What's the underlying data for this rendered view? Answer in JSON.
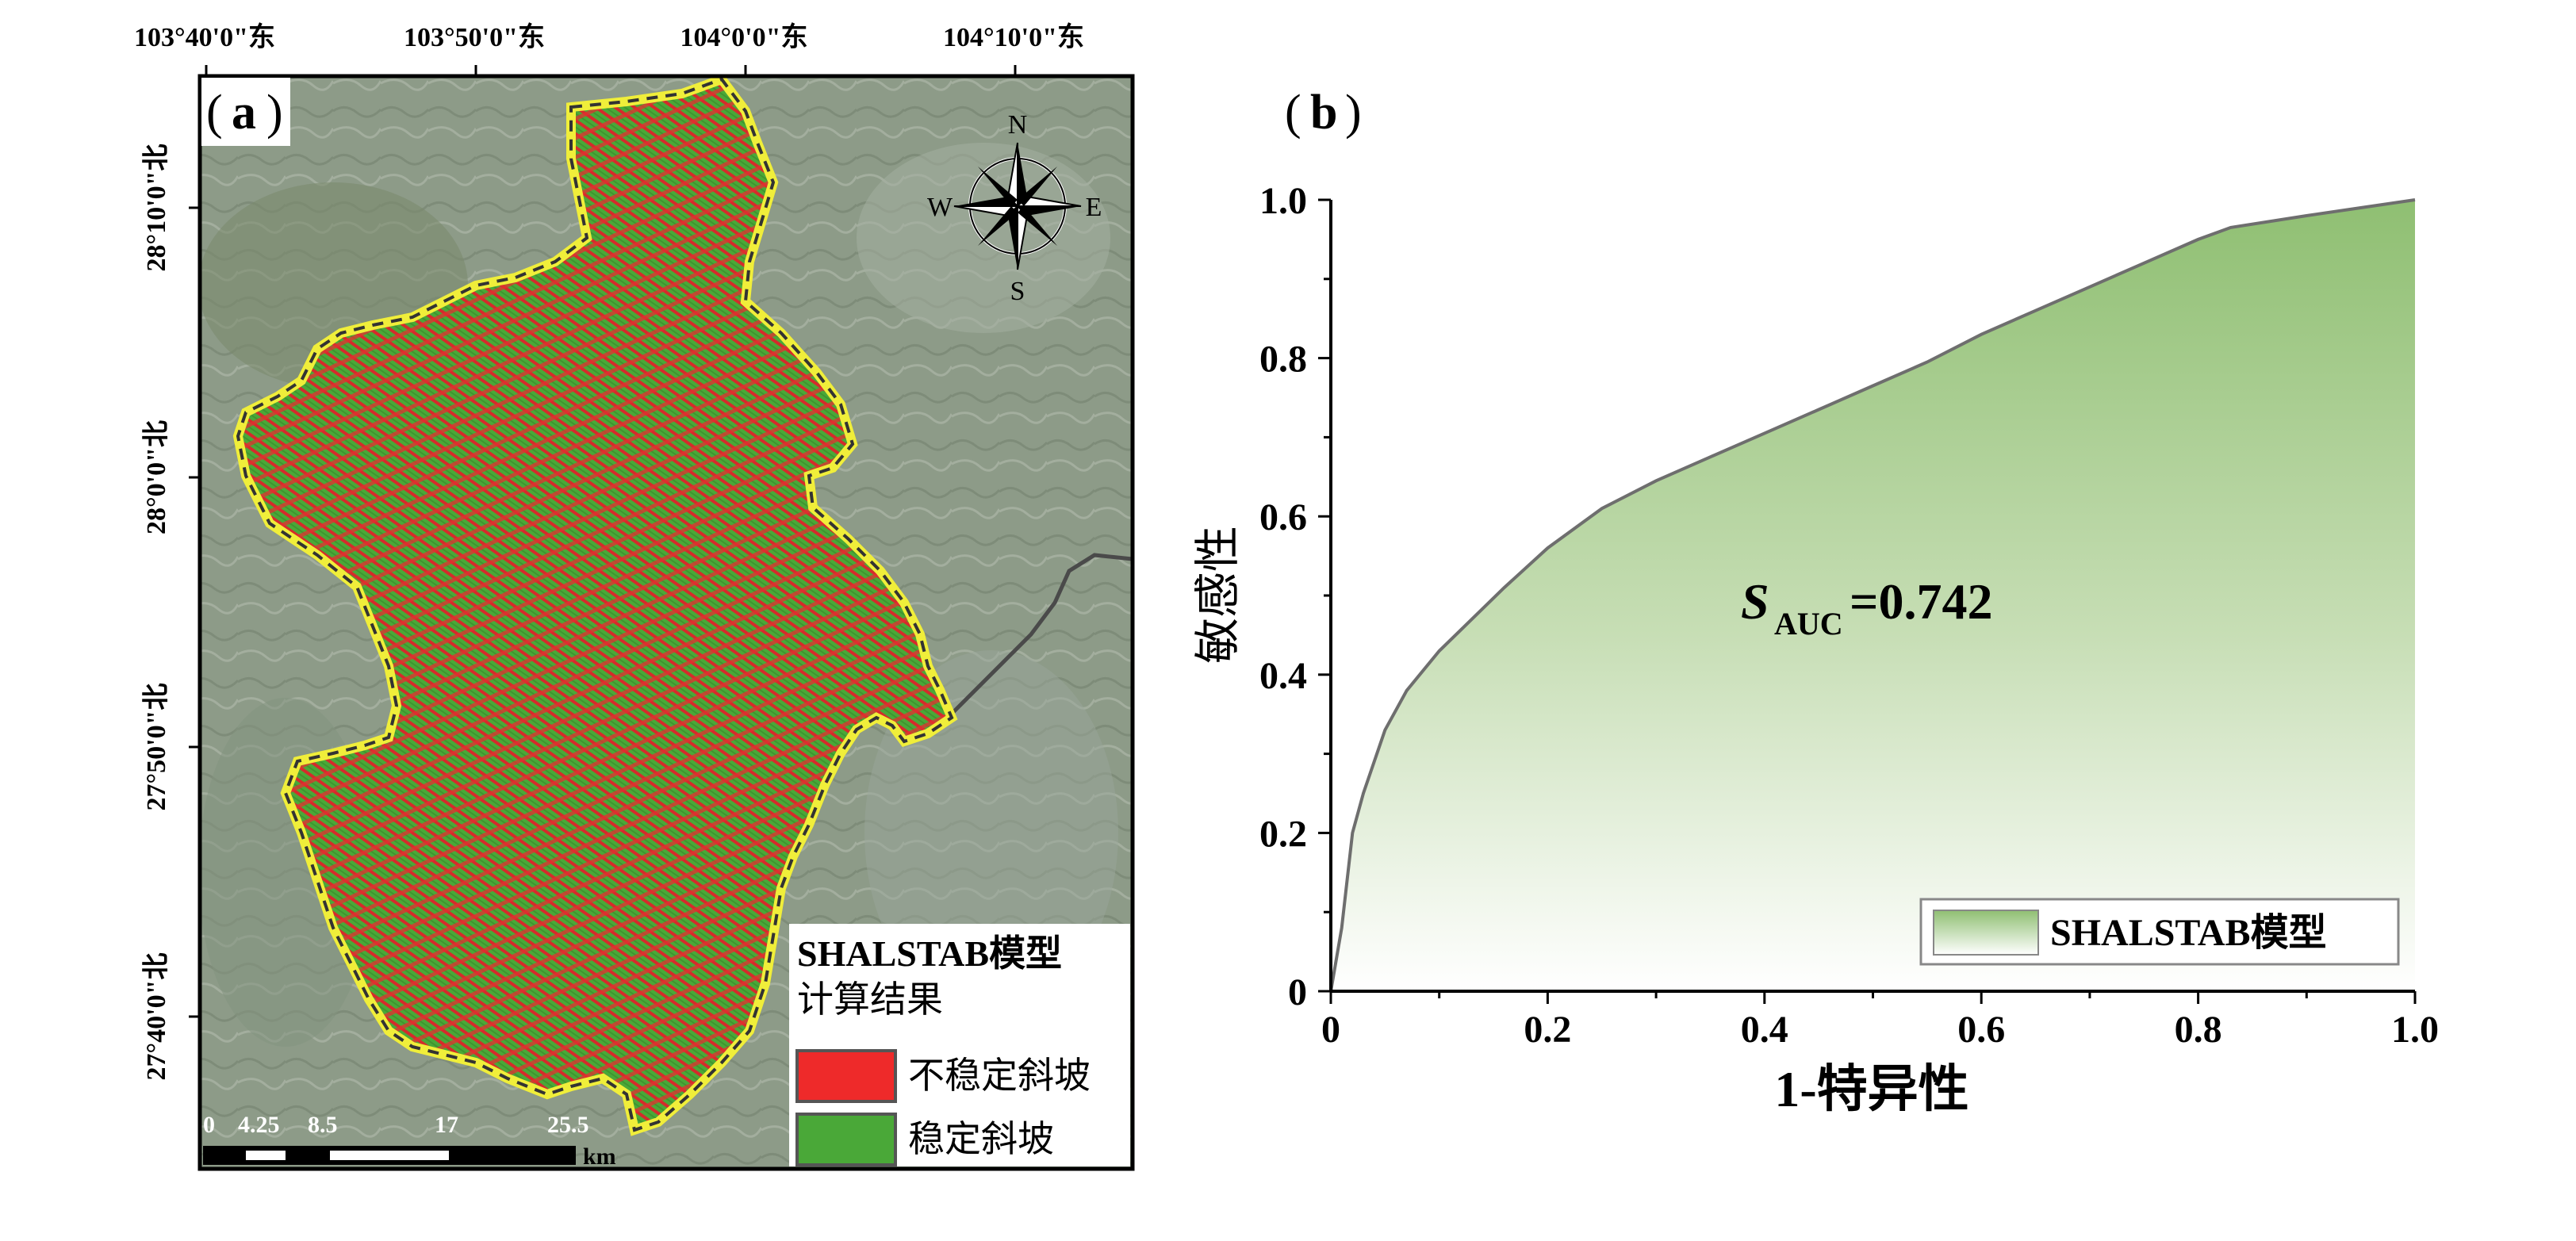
{
  "panel_a": {
    "label": "a",
    "lon_ticks": [
      "103°40'0\"东",
      "103°50'0\"东",
      "104°0'0\"东",
      "104°10'0\"东"
    ],
    "lat_ticks": [
      "28°10'0\"北",
      "28°0'0\"北",
      "27°50'0\"北",
      "27°40'0\"北"
    ],
    "compass": {
      "n": "N",
      "s": "S",
      "e": "E",
      "w": "W"
    },
    "legend": {
      "title_line1": "SHALSTAB模型",
      "title_line2": "计算结果",
      "items": [
        {
          "label": "不稳定斜坡",
          "color": "#ee2a2a"
        },
        {
          "label": "稳定斜坡",
          "color": "#4aa838"
        }
      ]
    },
    "scale_bar": {
      "labels": [
        "0",
        "4.25",
        "8.5",
        "17",
        "25.5"
      ],
      "unit": "km"
    },
    "colors": {
      "boundary": "#f0ee3a",
      "unstable": "#ee2a2a",
      "stable": "#4aa838",
      "river": "#4a4a4a"
    }
  },
  "chart_data": {
    "type": "area",
    "panel_label": "b",
    "xlabel": "1-特异性",
    "ylabel": "敏感性",
    "xlim": [
      0,
      1
    ],
    "ylim": [
      0,
      1
    ],
    "x_ticks": [
      "0",
      "0.2",
      "0.4",
      "0.6",
      "0.8",
      "1.0"
    ],
    "y_ticks": [
      "0",
      "0.2",
      "0.4",
      "0.6",
      "0.8",
      "1.0"
    ],
    "annotation": {
      "symbol": "S",
      "subscript": "AUC",
      "value": "=0.742"
    },
    "legend": {
      "position": "bottom-right"
    },
    "series": [
      {
        "name": "SHALSTAB模型",
        "color": "#8fbf72",
        "x": [
          0,
          0.01,
          0.02,
          0.03,
          0.05,
          0.07,
          0.1,
          0.13,
          0.16,
          0.2,
          0.25,
          0.3,
          0.35,
          0.4,
          0.45,
          0.5,
          0.55,
          0.6,
          0.65,
          0.7,
          0.75,
          0.8,
          0.83,
          0.9,
          0.95,
          1.0
        ],
        "y": [
          0,
          0.08,
          0.2,
          0.25,
          0.33,
          0.38,
          0.43,
          0.47,
          0.51,
          0.56,
          0.61,
          0.645,
          0.675,
          0.705,
          0.735,
          0.765,
          0.795,
          0.83,
          0.86,
          0.89,
          0.92,
          0.95,
          0.965,
          0.98,
          0.99,
          1.0
        ]
      }
    ]
  }
}
